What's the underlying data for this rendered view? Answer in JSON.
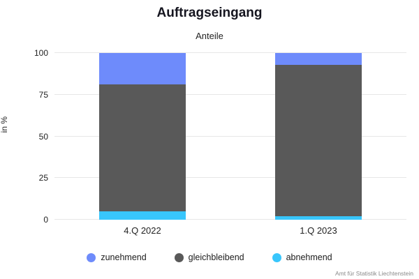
{
  "chart_data": {
    "type": "bar",
    "stacked": true,
    "title": "Auftragseingang",
    "subtitle": "Anteile",
    "ylabel": "in %",
    "xlabel": "",
    "ylim": [
      0,
      100
    ],
    "yticks": [
      0,
      25,
      50,
      75,
      100
    ],
    "grid": true,
    "legend_position": "bottom",
    "categories": [
      "4.Q 2022",
      "1.Q 2023"
    ],
    "series": [
      {
        "name": "zunehmend",
        "color": "#6e8bfb",
        "values": [
          19,
          7
        ]
      },
      {
        "name": "gleichbleibend",
        "color": "#595959",
        "values": [
          76,
          91
        ]
      },
      {
        "name": "abnehmend",
        "color": "#38c6fc",
        "values": [
          5,
          2
        ]
      }
    ],
    "stack_order_bottom_to_top": [
      "abnehmend",
      "gleichbleibend",
      "zunehmend"
    ],
    "source": "Amt für Statistik Liechtenstein"
  }
}
